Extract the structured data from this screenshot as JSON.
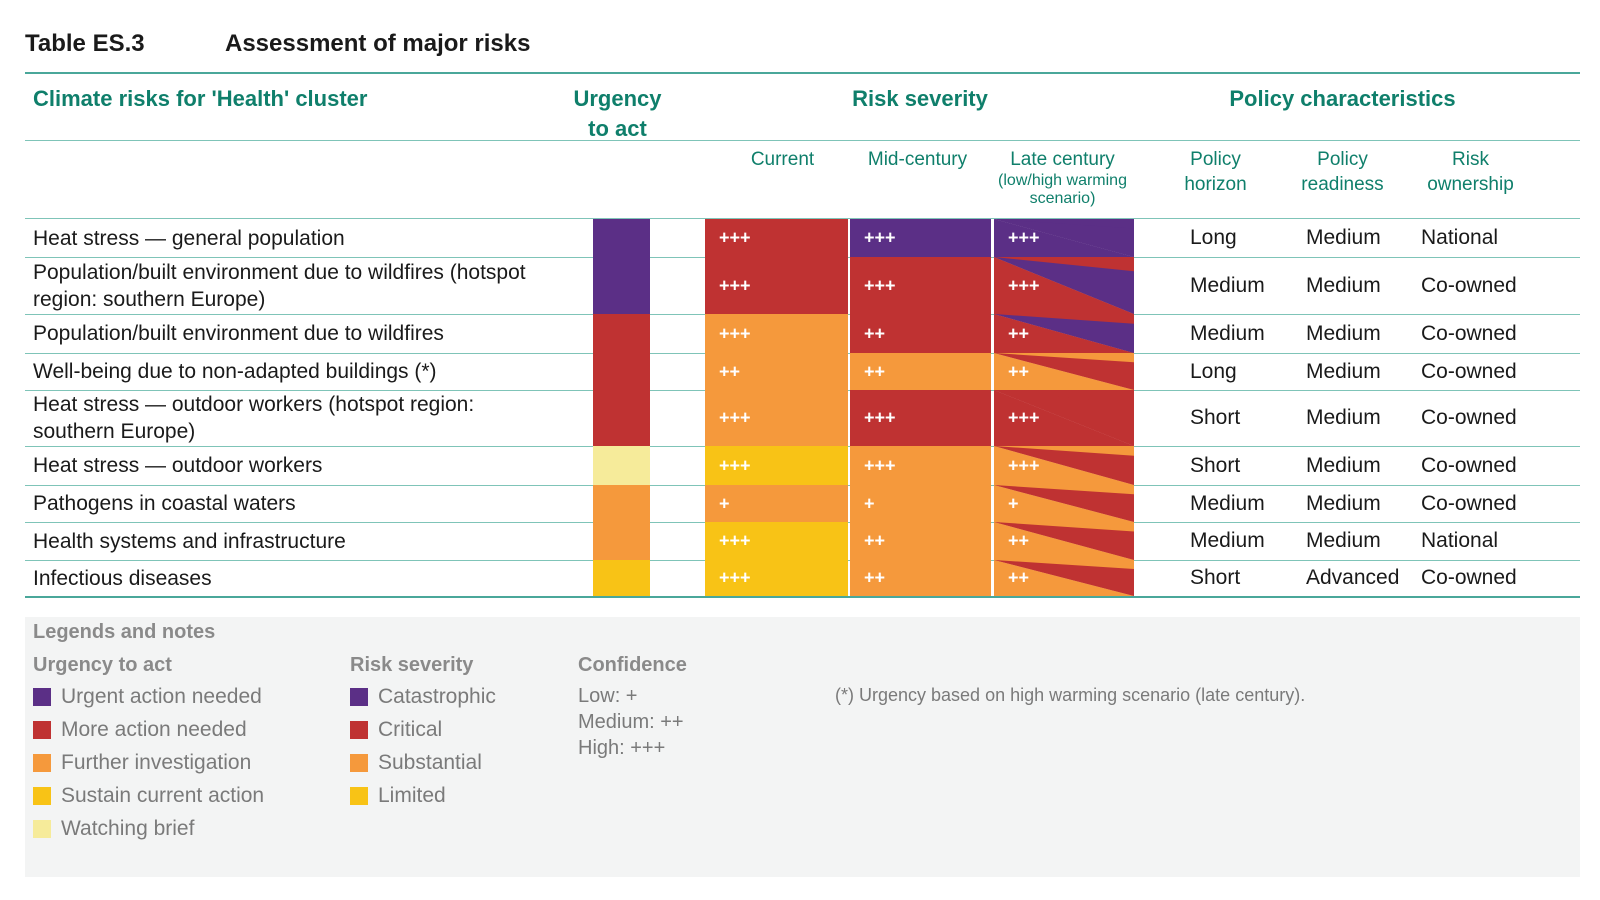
{
  "table_id": "Table ES.3",
  "title": "Assessment of major risks",
  "headers": {
    "risks": "Climate risks for 'Health' cluster",
    "urgency": "Urgency to act",
    "severity": "Risk severity",
    "policy": "Policy characteristics",
    "current": "Current",
    "mid": "Mid-century",
    "late": "Late century",
    "late_note": "(low/high warming scenario)",
    "horizon": "Policy horizon",
    "readiness": "Policy readiness",
    "ownership": "Risk ownership"
  },
  "colors": {
    "purple": "#5b2f86",
    "red": "#bf3232",
    "orange": "#f5993c",
    "yellow": "#f8c316",
    "pale": "#f6eb9a"
  },
  "rows": [
    {
      "label": "Heat stress — general population",
      "urgency": "purple",
      "current": {
        "color": "red",
        "conf": "+++"
      },
      "mid": {
        "color": "purple",
        "conf": "+++"
      },
      "late": {
        "low": "purple",
        "high": "purple",
        "conf": "+++"
      },
      "horizon": "Long",
      "readiness": "Medium",
      "ownership": "National"
    },
    {
      "label": "Population/built environment due to wildfires (hotspot region: southern Europe)",
      "urgency": "purple",
      "current": {
        "color": "red",
        "conf": "+++"
      },
      "mid": {
        "color": "red",
        "conf": "+++"
      },
      "late": {
        "low": "red",
        "high": "purple",
        "conf": "+++"
      },
      "horizon": "Medium",
      "readiness": "Medium",
      "ownership": "Co-owned"
    },
    {
      "label": "Population/built environment due to wildfires",
      "urgency": "red",
      "current": {
        "color": "orange",
        "conf": "+++"
      },
      "mid": {
        "color": "red",
        "conf": "++"
      },
      "late": {
        "low": "red",
        "high": "purple",
        "conf": "++"
      },
      "horizon": "Medium",
      "readiness": "Medium",
      "ownership": "Co-owned"
    },
    {
      "label": "Well-being due to non-adapted buildings (*)",
      "urgency": "red",
      "current": {
        "color": "orange",
        "conf": "++"
      },
      "mid": {
        "color": "orange",
        "conf": "++"
      },
      "late": {
        "low": "orange",
        "high": "red",
        "conf": "++"
      },
      "horizon": "Long",
      "readiness": "Medium",
      "ownership": "Co-owned"
    },
    {
      "label": "Heat stress — outdoor workers (hotspot region: southern Europe)",
      "urgency": "red",
      "current": {
        "color": "orange",
        "conf": "+++"
      },
      "mid": {
        "color": "red",
        "conf": "+++"
      },
      "late": {
        "low": "red",
        "high": "red",
        "conf": "+++"
      },
      "horizon": "Short",
      "readiness": "Medium",
      "ownership": "Co-owned"
    },
    {
      "label": "Heat stress — outdoor workers",
      "urgency": "pale",
      "current": {
        "color": "yellow",
        "conf": "+++"
      },
      "mid": {
        "color": "orange",
        "conf": "+++"
      },
      "late": {
        "low": "orange",
        "high": "red",
        "conf": "+++"
      },
      "horizon": "Short",
      "readiness": "Medium",
      "ownership": "Co-owned"
    },
    {
      "label": "Pathogens in coastal waters",
      "urgency": "orange",
      "current": {
        "color": "orange",
        "conf": "+"
      },
      "mid": {
        "color": "orange",
        "conf": "+"
      },
      "late": {
        "low": "orange",
        "high": "red",
        "conf": "+"
      },
      "horizon": "Medium",
      "readiness": "Medium",
      "ownership": "Co-owned"
    },
    {
      "label": "Health systems and infrastructure",
      "urgency": "orange",
      "current": {
        "color": "yellow",
        "conf": "+++"
      },
      "mid": {
        "color": "orange",
        "conf": "++"
      },
      "late": {
        "low": "orange",
        "high": "red",
        "conf": "++"
      },
      "horizon": "Medium",
      "readiness": "Medium",
      "ownership": "National"
    },
    {
      "label": "Infectious diseases",
      "urgency": "yellow",
      "current": {
        "color": "yellow",
        "conf": "+++"
      },
      "mid": {
        "color": "orange",
        "conf": "++"
      },
      "late": {
        "low": "orange",
        "high": "red",
        "conf": "++"
      },
      "horizon": "Short",
      "readiness": "Advanced",
      "ownership": "Co-owned"
    }
  ],
  "legend": {
    "title": "Legends and notes",
    "urgency_title": "Urgency to act",
    "urgency_items": [
      {
        "label": "Urgent action needed",
        "color": "purple"
      },
      {
        "label": "More action needed",
        "color": "red"
      },
      {
        "label": "Further investigation",
        "color": "orange"
      },
      {
        "label": "Sustain current action",
        "color": "yellow"
      },
      {
        "label": "Watching brief",
        "color": "pale"
      }
    ],
    "severity_title": "Risk severity",
    "severity_items": [
      {
        "label": "Catastrophic",
        "color": "purple"
      },
      {
        "label": "Critical",
        "color": "red"
      },
      {
        "label": "Substantial",
        "color": "orange"
      },
      {
        "label": "Limited",
        "color": "yellow"
      }
    ],
    "confidence_title": "Confidence",
    "confidence_items": [
      "Low: +",
      "Medium: ++",
      "High: +++"
    ],
    "note": "(*) Urgency based on high warming scenario (late century)."
  }
}
